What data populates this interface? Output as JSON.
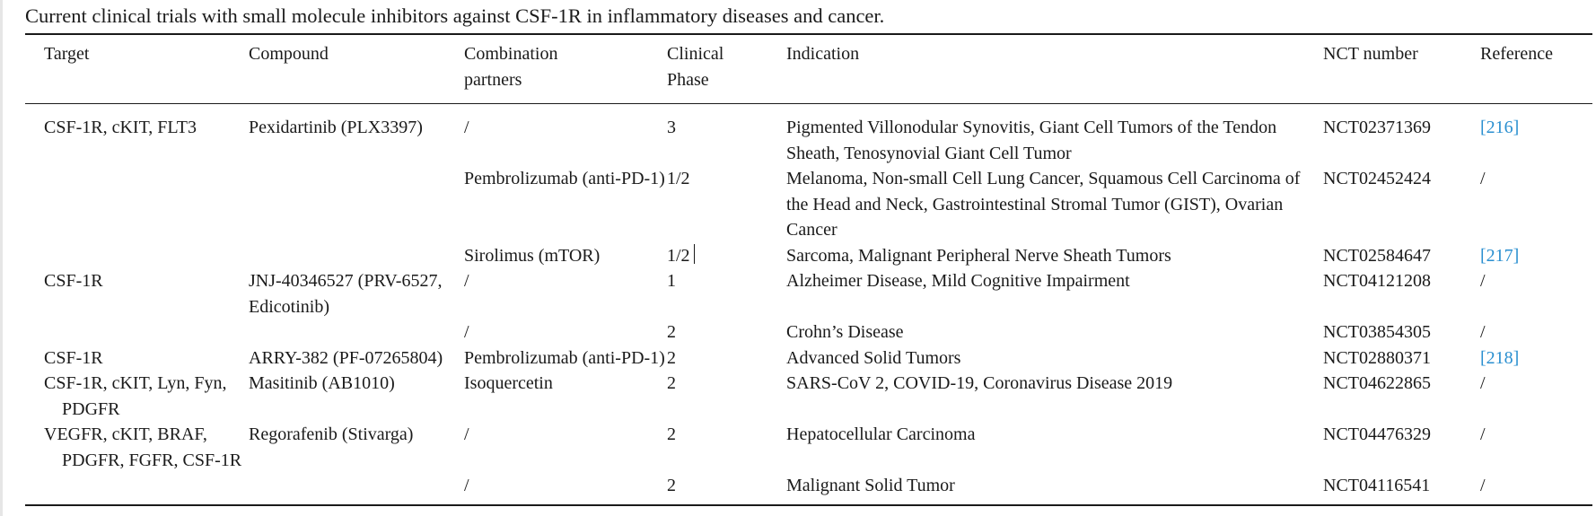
{
  "caption": "Current clinical trials with small molecule inhibitors against CSF-1R in inflammatory diseases and cancer.",
  "headers": {
    "target": "Target",
    "compound": "Compound",
    "partners_1": "Combination",
    "partners_2": "partners",
    "phase_1": "Clinical",
    "phase_2": "Phase",
    "indication": "Indication",
    "nct": "NCT number",
    "reference": "Reference"
  },
  "rows": [
    {
      "target": "CSF-1R, cKIT, FLT3",
      "compound": "Pexidartinib (PLX3397)",
      "partners": "/",
      "phase": "3",
      "indication": "Pigmented Villonodular Synovitis, Giant Cell Tumors of the Tendon Sheath, Tenosynovial Giant Cell Tumor",
      "nct": "NCT02371369",
      "reference": "[216]"
    },
    {
      "target": "",
      "compound": "",
      "partners": "Pembrolizumab (anti-PD-1)",
      "phase": "1/2",
      "indication": "Melanoma, Non-small Cell Lung Cancer, Squamous Cell Carcinoma of the Head and Neck, Gastrointestinal Stromal Tumor (GIST), Ovarian Cancer",
      "nct": "NCT02452424",
      "reference": "/"
    },
    {
      "target": "",
      "compound": "",
      "partners": "Sirolimus (mTOR)",
      "phase": "1/2",
      "indication": "Sarcoma, Malignant Peripheral Nerve Sheath Tumors",
      "nct": "NCT02584647",
      "reference": "[217]"
    },
    {
      "target": "CSF-1R",
      "compound": "JNJ-40346527 (PRV-6527, Edicotinib)",
      "partners": "/",
      "phase": "1",
      "indication": "Alzheimer Disease, Mild Cognitive Impairment",
      "nct": "NCT04121208",
      "reference": "/"
    },
    {
      "target": "",
      "compound": "",
      "partners": "/",
      "phase": "2",
      "indication": "Crohn’s Disease",
      "nct": "NCT03854305",
      "reference": "/"
    },
    {
      "target": "CSF-1R",
      "compound": "ARRY-382 (PF-07265804)",
      "partners": "Pembrolizumab (anti-PD-1)",
      "phase": "2",
      "indication": "Advanced Solid Tumors",
      "nct": "NCT02880371",
      "reference": "[218]"
    },
    {
      "target": "CSF-1R, cKIT, Lyn, Fyn, PDGFR",
      "compound": "Masitinib (AB1010)",
      "partners": "Isoquercetin",
      "phase": "2",
      "indication": "SARS-CoV 2, COVID-19, Coronavirus Disease 2019",
      "nct": "NCT04622865",
      "reference": "/"
    },
    {
      "target": "VEGFR, cKIT, BRAF, PDGFR, FGFR, CSF-1R",
      "compound": "Regorafenib (Stivarga)",
      "partners": "/",
      "phase": "2",
      "indication": "Hepatocellular Carcinoma",
      "nct": "NCT04476329",
      "reference": "/"
    },
    {
      "target": "",
      "compound": "",
      "partners": "/",
      "phase": "2",
      "indication": "Malignant Solid Tumor",
      "nct": "NCT04116541",
      "reference": "/"
    }
  ],
  "colors": {
    "text": "#1a1a1a",
    "reference_link": "#2a8fd0",
    "rule": "#1a1a1a"
  }
}
